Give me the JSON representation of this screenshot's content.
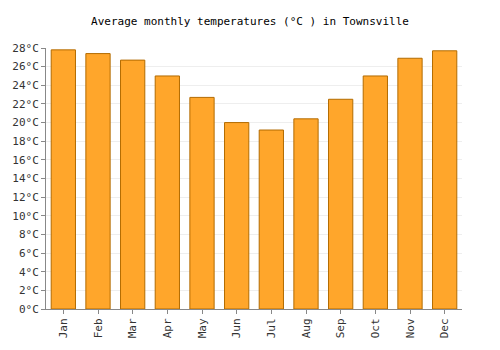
{
  "chart_data": {
    "type": "bar",
    "title": "Average monthly temperatures (°C ) in Townsville",
    "categories": [
      "Jan",
      "Feb",
      "Mar",
      "Apr",
      "May",
      "Jun",
      "Jul",
      "Aug",
      "Sep",
      "Oct",
      "Nov",
      "Dec"
    ],
    "values": [
      27.8,
      27.4,
      26.7,
      25.0,
      22.7,
      20.0,
      19.2,
      20.4,
      22.5,
      25.0,
      26.9,
      27.7
    ],
    "color": "#ffa62b",
    "ylim": [
      0,
      28
    ],
    "yticks": [
      {
        "value": 0,
        "label": "0°C"
      },
      {
        "value": 2,
        "label": "2°C"
      },
      {
        "value": 4,
        "label": "4°C"
      },
      {
        "value": 6,
        "label": "6°C"
      },
      {
        "value": 8,
        "label": "8°C"
      },
      {
        "value": 10,
        "label": "10°C"
      },
      {
        "value": 12,
        "label": "12°C"
      },
      {
        "value": 14,
        "label": "14°C"
      },
      {
        "value": 16,
        "label": "16°C"
      },
      {
        "value": 18,
        "label": "18°C"
      },
      {
        "value": 20,
        "label": "20°C"
      },
      {
        "value": 22,
        "label": "22°C"
      },
      {
        "value": 24,
        "label": "24°C"
      },
      {
        "value": 26,
        "label": "26°C"
      },
      {
        "value": 28,
        "label": "28°C"
      }
    ],
    "grid": true
  }
}
